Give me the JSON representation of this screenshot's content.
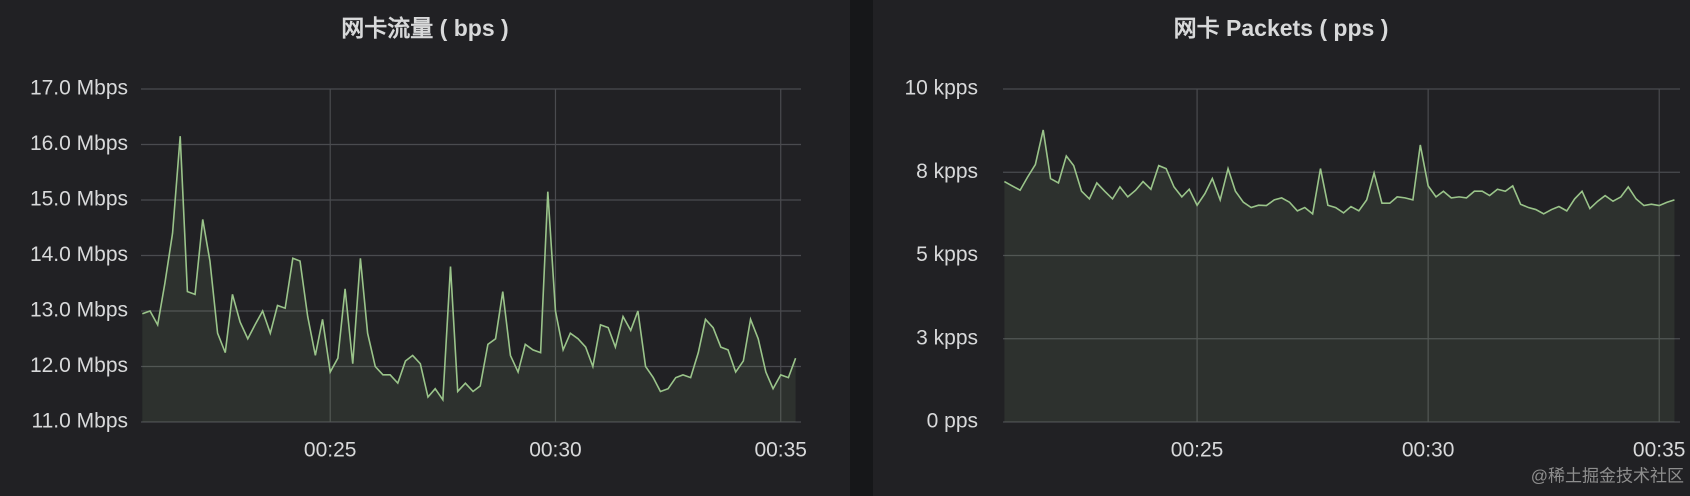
{
  "chart_data": [
    {
      "type": "line",
      "title": "网卡流量 ( bps )",
      "color": "#9ac48a",
      "area": true,
      "grid": true,
      "xlim": [
        20.8,
        35.45
      ],
      "xticks": [
        {
          "value": 25,
          "label": "00:25"
        },
        {
          "value": 30,
          "label": "00:30"
        },
        {
          "value": 35,
          "label": "00:35"
        }
      ],
      "ylim": [
        11,
        17
      ],
      "yticks": [
        {
          "value": 11,
          "label": "11.0 Mbps"
        },
        {
          "value": 12,
          "label": "12.0 Mbps"
        },
        {
          "value": 13,
          "label": "13.0 Mbps"
        },
        {
          "value": 14,
          "label": "14.0 Mbps"
        },
        {
          "value": 15,
          "label": "15.0 Mbps"
        },
        {
          "value": 16,
          "label": "16.0 Mbps"
        },
        {
          "value": 17,
          "label": "17.0 Mbps"
        }
      ],
      "x": [
        20.83,
        21.0,
        21.17,
        21.33,
        21.5,
        21.67,
        21.83,
        22.0,
        22.17,
        22.33,
        22.5,
        22.67,
        22.83,
        23.0,
        23.17,
        23.33,
        23.5,
        23.67,
        23.83,
        24.0,
        24.17,
        24.33,
        24.5,
        24.67,
        24.83,
        25.0,
        25.17,
        25.33,
        25.5,
        25.67,
        25.83,
        26.0,
        26.17,
        26.33,
        26.5,
        26.67,
        26.83,
        27.0,
        27.17,
        27.33,
        27.5,
        27.67,
        27.83,
        28.0,
        28.17,
        28.33,
        28.5,
        28.67,
        28.83,
        29.0,
        29.17,
        29.33,
        29.5,
        29.67,
        29.83,
        30.0,
        30.17,
        30.33,
        30.5,
        30.67,
        30.83,
        31.0,
        31.17,
        31.33,
        31.5,
        31.67,
        31.83,
        32.0,
        32.17,
        32.33,
        32.5,
        32.67,
        32.83,
        33.0,
        33.17,
        33.33,
        33.5,
        33.67,
        33.83,
        34.0,
        34.17,
        34.33,
        34.5,
        34.67,
        34.83,
        35.0,
        35.17,
        35.33
      ],
      "values": [
        12.95,
        13.0,
        12.75,
        13.5,
        14.4,
        16.15,
        13.35,
        13.3,
        14.65,
        13.9,
        12.6,
        12.25,
        13.3,
        12.8,
        12.5,
        12.75,
        13.0,
        12.6,
        13.1,
        13.05,
        13.95,
        13.9,
        12.9,
        12.2,
        12.85,
        11.9,
        12.15,
        13.4,
        12.05,
        13.95,
        12.6,
        12.0,
        11.85,
        11.85,
        11.7,
        12.1,
        12.2,
        12.05,
        11.45,
        11.6,
        11.4,
        13.8,
        11.55,
        11.7,
        11.55,
        11.65,
        12.4,
        12.5,
        13.35,
        12.2,
        11.9,
        12.4,
        12.3,
        12.25,
        15.15,
        13.0,
        12.3,
        12.6,
        12.5,
        12.35,
        12.0,
        12.75,
        12.7,
        12.35,
        12.9,
        12.65,
        13.0,
        12.0,
        11.8,
        11.55,
        11.6,
        11.8,
        11.85,
        11.8,
        12.25,
        12.85,
        12.7,
        12.35,
        12.3,
        11.9,
        12.1,
        12.85,
        12.5,
        11.9,
        11.6,
        11.85,
        11.8,
        12.15
      ]
    },
    {
      "type": "line",
      "title": "网卡 Packets ( pps )",
      "color": "#9ac48a",
      "area": true,
      "grid": true,
      "xlim": [
        20.8,
        35.45
      ],
      "xticks": [
        {
          "value": 25,
          "label": "00:25"
        },
        {
          "value": 30,
          "label": "00:30"
        },
        {
          "value": 35,
          "label": "00:35"
        }
      ],
      "ylim": [
        0,
        10
      ],
      "yticks": [
        {
          "value": 0,
          "label": "0 pps"
        },
        {
          "value": 2.5,
          "label": "3 kpps"
        },
        {
          "value": 5,
          "label": "5 kpps"
        },
        {
          "value": 7.5,
          "label": "8 kpps"
        },
        {
          "value": 10,
          "label": "10 kpps"
        }
      ],
      "x": [
        20.83,
        21.0,
        21.17,
        21.33,
        21.5,
        21.67,
        21.83,
        22.0,
        22.17,
        22.33,
        22.5,
        22.67,
        22.83,
        23.0,
        23.17,
        23.33,
        23.5,
        23.67,
        23.83,
        24.0,
        24.17,
        24.33,
        24.5,
        24.67,
        24.83,
        25.0,
        25.17,
        25.33,
        25.5,
        25.67,
        25.83,
        26.0,
        26.17,
        26.33,
        26.5,
        26.67,
        26.83,
        27.0,
        27.17,
        27.33,
        27.5,
        27.67,
        27.83,
        28.0,
        28.17,
        28.33,
        28.5,
        28.67,
        28.83,
        29.0,
        29.17,
        29.33,
        29.5,
        29.67,
        29.83,
        30.0,
        30.17,
        30.33,
        30.5,
        30.67,
        30.83,
        31.0,
        31.17,
        31.33,
        31.5,
        31.67,
        31.83,
        32.0,
        32.17,
        32.33,
        32.5,
        32.67,
        32.83,
        33.0,
        33.17,
        33.33,
        33.5,
        33.67,
        33.83,
        34.0,
        34.17,
        34.33,
        34.5,
        34.67,
        34.83,
        35.0,
        35.17,
        35.33
      ],
      "values": [
        7.22,
        7.09,
        6.96,
        7.35,
        7.73,
        8.77,
        7.31,
        7.18,
        7.99,
        7.7,
        6.93,
        6.7,
        7.18,
        6.93,
        6.7,
        7.06,
        6.76,
        6.96,
        7.22,
        6.99,
        7.7,
        7.61,
        7.06,
        6.76,
        6.99,
        6.51,
        6.86,
        7.31,
        6.67,
        7.61,
        6.93,
        6.6,
        6.44,
        6.51,
        6.5,
        6.67,
        6.73,
        6.6,
        6.34,
        6.44,
        6.25,
        7.61,
        6.51,
        6.44,
        6.28,
        6.47,
        6.34,
        6.67,
        7.48,
        6.57,
        6.57,
        6.76,
        6.73,
        6.67,
        8.32,
        7.09,
        6.76,
        6.93,
        6.73,
        6.76,
        6.73,
        6.93,
        6.93,
        6.8,
        6.99,
        6.93,
        7.09,
        6.54,
        6.44,
        6.38,
        6.25,
        6.38,
        6.47,
        6.34,
        6.7,
        6.93,
        6.41,
        6.63,
        6.8,
        6.63,
        6.76,
        7.06,
        6.7,
        6.5,
        6.54,
        6.5,
        6.6,
        6.67
      ]
    }
  ],
  "watermark": "@稀土掘金技术社区"
}
